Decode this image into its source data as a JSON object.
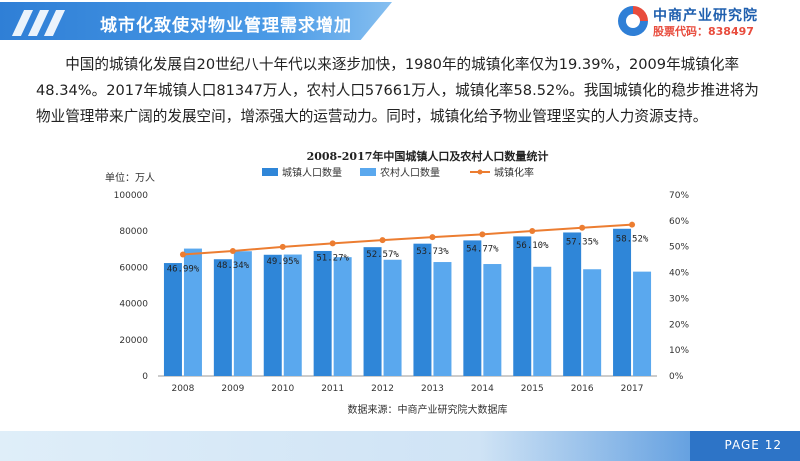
{
  "header": {
    "title": "城市化致使对物业管理需求增加",
    "logo_name": "中商产业研究院",
    "logo_code": "股票代码：838497"
  },
  "paragraph": "中国的城镇化发展自20世纪八十年代以来逐步加快，1980年的城镇化率仅为19.39%，2009年城镇化率48.34%。2017年城镇人口81347万人，农村人口57661万人，城镇化率58.52%。我国城镇化的稳步推进将为物业管理带来广阔的发展空间，增添强大的运营动力。同时，城镇化给予物业管理坚实的人力资源支持。",
  "chart_data": {
    "type": "bar",
    "title": "2008-2017年中国城镇人口及农村人口数量统计",
    "unit_label": "单位：万人",
    "categories": [
      "2008",
      "2009",
      "2010",
      "2011",
      "2012",
      "2013",
      "2014",
      "2015",
      "2016",
      "2017"
    ],
    "ylim": [
      0,
      100000
    ],
    "yticks": [
      "0",
      "20000",
      "40000",
      "60000",
      "80000",
      "100000"
    ],
    "y2lim": [
      0,
      70
    ],
    "y2ticks": [
      "0%",
      "10%",
      "20%",
      "30%",
      "40%",
      "50%",
      "60%",
      "70%"
    ],
    "series": [
      {
        "name": "城镇人口数量",
        "type": "bar",
        "axis": "left",
        "color": "#2f86d8",
        "values": [
          62403,
          64512,
          66978,
          69079,
          71182,
          73111,
          74916,
          77116,
          79298,
          81347
        ]
      },
      {
        "name": "农村人口数量",
        "type": "bar",
        "axis": "left",
        "color": "#5aa8ee",
        "values": [
          70399,
          68938,
          67113,
          65656,
          64222,
          62961,
          61866,
          60346,
          58973,
          57661
        ]
      },
      {
        "name": "城镇化率",
        "type": "line",
        "axis": "right",
        "color": "#ec7d31",
        "values": [
          46.99,
          48.34,
          49.95,
          51.27,
          52.57,
          53.73,
          54.77,
          56.1,
          57.35,
          58.52
        ],
        "labels": [
          "46.99%",
          "48.34%",
          "49.95%",
          "51.27%",
          "52.57%",
          "53.73%",
          "54.77%",
          "56.10%",
          "57.35%",
          "58.52%"
        ]
      }
    ],
    "legend_position": "top",
    "source": "数据来源：中商产业研究院大数据库"
  },
  "footer": {
    "page_label": "PAGE",
    "page_number": "12"
  }
}
